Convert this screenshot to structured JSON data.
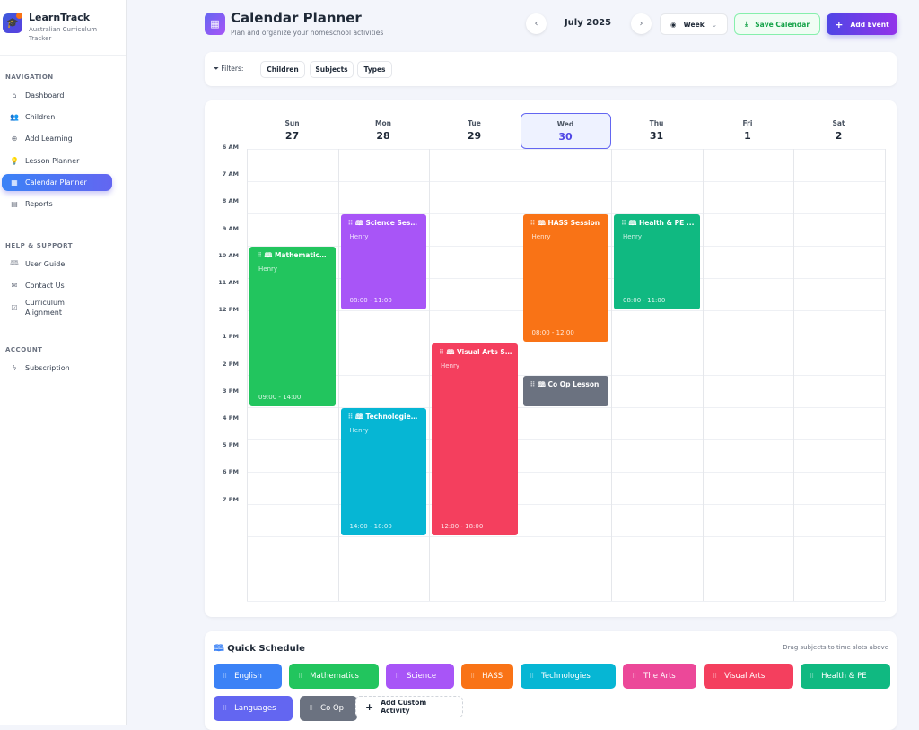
{
  "sidebar": {
    "brand": "LearnTrack",
    "brand_sub": "Australian Curriculum Tracker",
    "sections": {
      "navigation": "NAVIGATION",
      "help": "HELP & SUPPORT",
      "account": "ACCOUNT"
    },
    "nav": [
      {
        "label": "Dashboard",
        "icon": "home-icon"
      },
      {
        "label": "Children",
        "icon": "users-icon"
      },
      {
        "label": "Add Learning",
        "icon": "plus-circle-icon"
      },
      {
        "label": "Lesson Planner",
        "icon": "lightbulb-icon"
      },
      {
        "label": "Calendar Planner",
        "icon": "calendar-icon",
        "active": true
      },
      {
        "label": "Reports",
        "icon": "file-icon"
      }
    ],
    "help": [
      {
        "label": "User Guide",
        "icon": "book-icon"
      },
      {
        "label": "Contact Us",
        "icon": "mail-icon"
      },
      {
        "label": "Curriculum Alignment",
        "icon": "clipboard-check-icon"
      }
    ],
    "account": [
      {
        "label": "Subscription",
        "icon": "zap-icon"
      }
    ]
  },
  "header": {
    "title": "Calendar Planner",
    "subtitle": "Plan and organize your homeschool activities",
    "month": "July 2025",
    "view": "Week",
    "save": "Save Calendar",
    "add": "Add Event"
  },
  "filters": {
    "label": "Filters:",
    "chips": [
      "Children",
      "Subjects",
      "Types"
    ]
  },
  "calendar": {
    "days": [
      {
        "name": "Sun",
        "date": "27"
      },
      {
        "name": "Mon",
        "date": "28"
      },
      {
        "name": "Tue",
        "date": "29"
      },
      {
        "name": "Wed",
        "date": "30",
        "today": true
      },
      {
        "name": "Thu",
        "date": "31"
      },
      {
        "name": "Fri",
        "date": "1"
      },
      {
        "name": "Sat",
        "date": "2"
      }
    ],
    "hours": [
      "6 AM",
      "7 AM",
      "8 AM",
      "9 AM",
      "10 AM",
      "11 AM",
      "12 PM",
      "1 PM",
      "2 PM",
      "3 PM",
      "4 PM",
      "5 PM",
      "6 PM",
      "7 PM"
    ],
    "events": [
      {
        "title": "Mathematics...",
        "child": "Henry",
        "time": "09:00 - 14:00",
        "day": 0,
        "color": "#22c55e"
      },
      {
        "title": "Science Sessi...",
        "child": "Henry",
        "time": "08:00 - 11:00",
        "day": 1,
        "color": "#a855f7"
      },
      {
        "title": "Technologies...",
        "child": "Henry",
        "time": "14:00 - 18:00",
        "day": 1,
        "color": "#06b6d4"
      },
      {
        "title": "Visual Arts S...",
        "child": "Henry",
        "time": "12:00 - 18:00",
        "day": 2,
        "color": "#f43f5e"
      },
      {
        "title": "HASS Session",
        "child": "Henry",
        "time": "08:00 - 12:00",
        "day": 3,
        "color": "#f97316"
      },
      {
        "title": "Co Op Lesson",
        "day": 3,
        "color": "#6b7280"
      },
      {
        "title": "Health & PE ...",
        "child": "Henry",
        "time": "08:00 - 11:00",
        "day": 4,
        "color": "#10b981"
      }
    ]
  },
  "quick": {
    "title": "Quick Schedule",
    "hint": "Drag subjects to time slots above",
    "add": "Add Custom Activity",
    "items": [
      {
        "label": "English",
        "color": "#3b82f6"
      },
      {
        "label": "Mathematics",
        "color": "#22c55e"
      },
      {
        "label": "Science",
        "color": "#a855f7"
      },
      {
        "label": "HASS",
        "color": "#f97316"
      },
      {
        "label": "Technologies",
        "color": "#06b6d4"
      },
      {
        "label": "The Arts",
        "color": "#ec4899"
      },
      {
        "label": "Visual Arts",
        "color": "#f43f5e"
      },
      {
        "label": "Health & PE",
        "color": "#10b981"
      },
      {
        "label": "Languages",
        "color": "#6366f1"
      },
      {
        "label": "Co Op",
        "color": "#6b7280"
      }
    ]
  }
}
